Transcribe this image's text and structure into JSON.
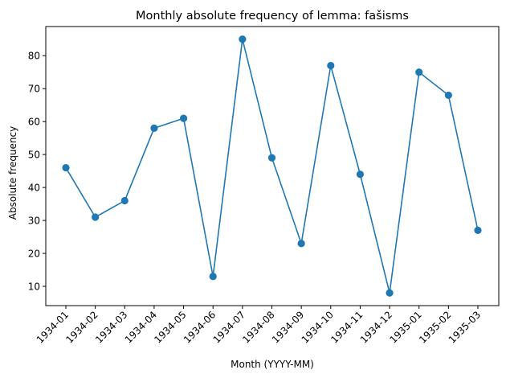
{
  "chart_data": {
    "type": "line",
    "title": "Monthly absolute frequency of lemma: fašisms",
    "xlabel": "Month (YYYY-MM)",
    "ylabel": "Absolute frequency",
    "categories": [
      "1934-01",
      "1934-02",
      "1934-03",
      "1934-04",
      "1934-05",
      "1934-06",
      "1934-07",
      "1934-08",
      "1934-09",
      "1934-10",
      "1934-11",
      "1934-12",
      "1935-01",
      "1935-02",
      "1935-03"
    ],
    "values": [
      46,
      31,
      36,
      58,
      61,
      13,
      85,
      49,
      23,
      77,
      44,
      8,
      75,
      68,
      27
    ],
    "yticks": [
      10,
      20,
      30,
      40,
      50,
      60,
      70,
      80
    ],
    "ylim": [
      4.15,
      88.85
    ],
    "grid": false,
    "color": "#1f77b4"
  }
}
